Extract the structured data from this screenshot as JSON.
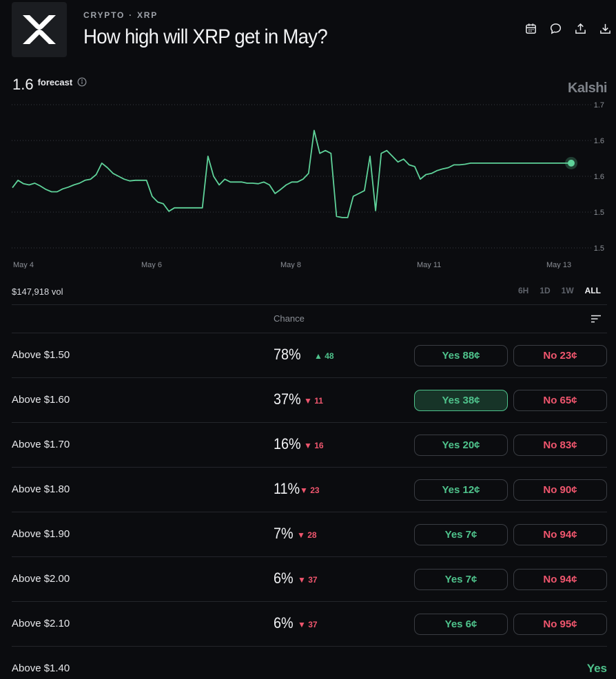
{
  "header": {
    "breadcrumb": [
      "CRYPTO",
      "XRP"
    ],
    "breadcrumb_sep": "·",
    "title": "How high will XRP get in May?",
    "logo_icon": "xrp-logo-icon",
    "icons": [
      "calendar-icon",
      "comment-icon",
      "share-icon",
      "download-icon"
    ]
  },
  "forecast": {
    "value": "1.6",
    "label": "forecast",
    "info_icon": "info-icon"
  },
  "brand": "Kalshi",
  "chart_data": {
    "type": "line",
    "y_ticks": [
      "1.7",
      "1.6",
      "1.6",
      "1.5",
      "1.5"
    ],
    "x_ticks": [
      "May 4",
      "May 6",
      "May 8",
      "May 11",
      "May 13"
    ],
    "ylim": [
      1.45,
      1.7
    ],
    "grid": true,
    "color": "#5fd39a",
    "series": [
      {
        "x": [
          0,
          1,
          2,
          3,
          4,
          5,
          6,
          7,
          8,
          9,
          10,
          11,
          12,
          13,
          14,
          15,
          16,
          17,
          18,
          19,
          20,
          21,
          22,
          23,
          24,
          25,
          26,
          27,
          28,
          29,
          30,
          31,
          32,
          33,
          34,
          35,
          36,
          37,
          38,
          39,
          40,
          41,
          42,
          43,
          44,
          45,
          46,
          47,
          48,
          49,
          50,
          51,
          52,
          53,
          54,
          55,
          56,
          57,
          58,
          59,
          60,
          61,
          62,
          63,
          64,
          65,
          66,
          67,
          68,
          69,
          70,
          71,
          72,
          73,
          74,
          75,
          76,
          77,
          78,
          79,
          80,
          81,
          82,
          83,
          84,
          85,
          86,
          87,
          88,
          89,
          90,
          91,
          92,
          93,
          94,
          95,
          96,
          97,
          98,
          99,
          100
        ],
        "values": [
          1.555,
          1.568,
          1.562,
          1.56,
          1.563,
          1.558,
          1.552,
          1.548,
          1.548,
          1.553,
          1.556,
          1.56,
          1.563,
          1.568,
          1.57,
          1.578,
          1.598,
          1.59,
          1.58,
          1.575,
          1.57,
          1.567,
          1.568,
          1.568,
          1.568,
          1.54,
          1.53,
          1.527,
          1.514,
          1.52,
          1.52,
          1.52,
          1.52,
          1.52,
          1.52,
          1.61,
          1.575,
          1.56,
          1.57,
          1.565,
          1.565,
          1.565,
          1.563,
          1.563,
          1.562,
          1.565,
          1.56,
          1.545,
          1.552,
          1.56,
          1.565,
          1.565,
          1.57,
          1.58,
          1.655,
          1.615,
          1.62,
          1.615,
          1.505,
          1.503,
          1.503,
          1.54,
          1.545,
          1.55,
          1.61,
          1.515,
          1.615,
          1.62,
          1.61,
          1.6,
          1.605,
          1.595,
          1.592,
          1.57,
          1.578,
          1.58,
          1.585,
          1.588,
          1.59,
          1.595,
          1.595,
          1.596,
          1.598,
          1.598,
          1.598,
          1.598,
          1.598,
          1.598,
          1.598,
          1.598,
          1.598,
          1.598,
          1.598,
          1.598,
          1.598,
          1.598,
          1.598,
          1.598,
          1.598,
          1.598,
          1.598
        ]
      }
    ]
  },
  "volume": "$147,918 vol",
  "ranges": [
    {
      "label": "6H",
      "active": false
    },
    {
      "label": "1D",
      "active": false
    },
    {
      "label": "1W",
      "active": false
    },
    {
      "label": "ALL",
      "active": true
    }
  ],
  "table": {
    "chance_header": "Chance",
    "sort_icon": "sort-icon",
    "rows": [
      {
        "name": "Above $1.50",
        "pct": "78%",
        "change": "48",
        "dir": "up",
        "yes": "Yes 88¢",
        "no": "No 23¢"
      },
      {
        "name": "Above $1.60",
        "pct": "37%",
        "change": "11",
        "dir": "down",
        "yes": "Yes 38¢",
        "no": "No 65¢",
        "selected": true
      },
      {
        "name": "Above $1.70",
        "pct": "16%",
        "change": "16",
        "dir": "down",
        "yes": "Yes 20¢",
        "no": "No 83¢"
      },
      {
        "name": "Above $1.80",
        "pct": "11%",
        "change": "23",
        "dir": "down",
        "yes": "Yes 12¢",
        "no": "No 90¢"
      },
      {
        "name": "Above $1.90",
        "pct": "7%",
        "change": "28",
        "dir": "down",
        "yes": "Yes 7¢",
        "no": "No 94¢"
      },
      {
        "name": "Above $2.00",
        "pct": "6%",
        "change": "37",
        "dir": "down",
        "yes": "Yes 7¢",
        "no": "No 94¢"
      },
      {
        "name": "Above $2.10",
        "pct": "6%",
        "change": "37",
        "dir": "down",
        "yes": "Yes 6¢",
        "no": "No 95¢"
      }
    ],
    "final_row": {
      "name": "Above $1.40",
      "result": "Yes"
    }
  }
}
